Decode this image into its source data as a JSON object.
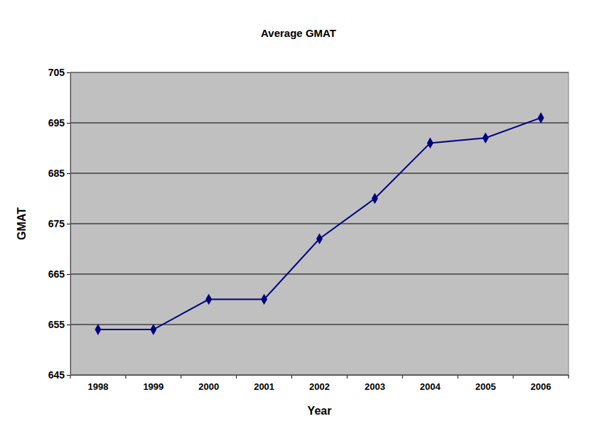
{
  "chart_data": {
    "type": "line",
    "title": "Average GMAT",
    "x_label": "Year",
    "y_label": "GMAT",
    "categories": [
      "1998",
      "1999",
      "2000",
      "2001",
      "2002",
      "2003",
      "2004",
      "2005",
      "2006"
    ],
    "values": [
      654,
      654,
      660,
      660,
      672,
      680,
      691,
      692,
      696
    ],
    "color": "#000080",
    "marker": "diamond",
    "ylim": [
      645,
      705
    ],
    "yticks": [
      645,
      655,
      665,
      675,
      685,
      695,
      705
    ],
    "grid": true
  }
}
